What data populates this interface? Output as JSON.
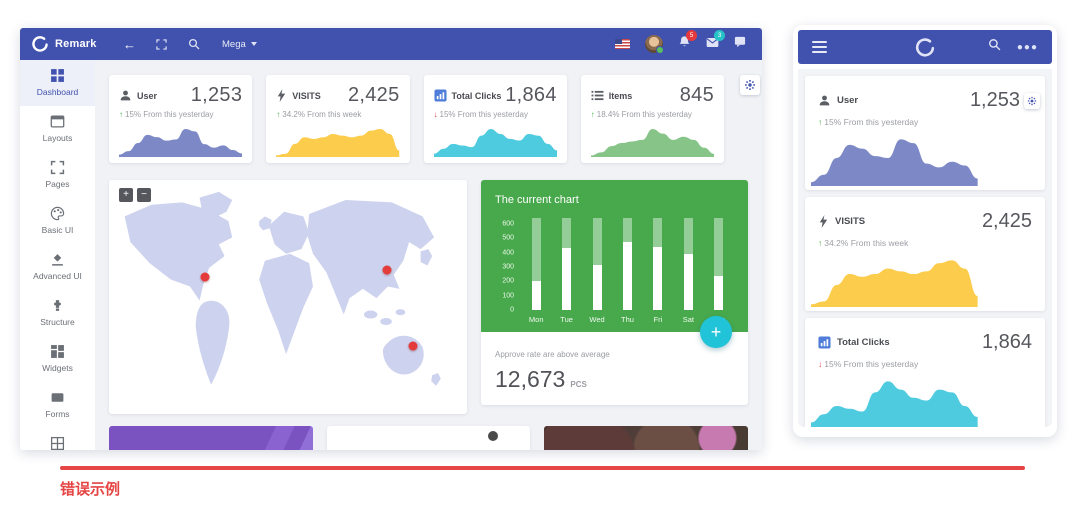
{
  "footer": {
    "caption": "错误示例"
  },
  "desktop": {
    "navbar": {
      "brand": "Remark",
      "back_glyph": "←",
      "mega_label": "Mega",
      "notif_badge": "5",
      "msg_badge": "3"
    },
    "sidebar": {
      "items": [
        {
          "label": "Dashboard"
        },
        {
          "label": "Layouts"
        },
        {
          "label": "Pages"
        },
        {
          "label": "Basic UI"
        },
        {
          "label": "Advanced UI"
        },
        {
          "label": "Structure"
        },
        {
          "label": "Widgets"
        },
        {
          "label": "Forms"
        },
        {
          "label": ""
        }
      ]
    },
    "stats": [
      {
        "label": "User",
        "value": "1,253",
        "trend": "up",
        "delta": "15% From this yesterday",
        "color": "#7d89c6",
        "spark": [
          2,
          5,
          12,
          19,
          17,
          14,
          15,
          24,
          22,
          11,
          8,
          10,
          6,
          3
        ]
      },
      {
        "label": "VISITS",
        "value": "2,425",
        "trend": "up",
        "delta": "34.2% From this week",
        "color": "#fccd4c",
        "spark": [
          1,
          2,
          8,
          12,
          11,
          12,
          14,
          13,
          12,
          13,
          16,
          17,
          14,
          4
        ]
      },
      {
        "label": "Total Clicks",
        "value": "1,864",
        "trend": "down",
        "delta": "15% From this yesterday",
        "color": "#4fcbdf",
        "spark": [
          2,
          5,
          8,
          7,
          6,
          13,
          17,
          14,
          11,
          10,
          14,
          13,
          8,
          4
        ]
      },
      {
        "label": "Items",
        "value": "845",
        "trend": "up",
        "delta": "18.4% From this yesterday",
        "color": "#86c487",
        "spark": [
          1,
          3,
          7,
          9,
          10,
          11,
          18,
          15,
          11,
          13,
          11,
          6,
          2
        ]
      }
    ],
    "map": {
      "zoom_in_label": "+",
      "zoom_out_label": "−",
      "markers": [
        {
          "x": 26,
          "y": 41
        },
        {
          "x": 78.5,
          "y": 38
        },
        {
          "x": 86,
          "y": 72
        }
      ]
    },
    "approve": {
      "text": "Approve rate are above average",
      "value": "12,673",
      "unit": "PCS"
    },
    "fab_label": "+"
  },
  "mobile": {
    "cards": [
      {
        "label": "User",
        "value": "1,253",
        "trend": "up",
        "delta": "15% From this yesterday",
        "color": "#7d89c6",
        "spark": [
          2,
          6,
          15,
          22,
          20,
          16,
          15,
          25,
          23,
          12,
          10,
          13,
          11,
          4
        ]
      },
      {
        "label": "VISITS",
        "value": "2,425",
        "trend": "up",
        "delta": "34.2% From this week",
        "color": "#fccd4c",
        "spark": [
          1,
          2,
          8,
          12,
          11,
          12,
          14,
          13,
          12,
          13,
          16,
          17,
          14,
          4
        ]
      },
      {
        "label": "Total Clicks",
        "value": "1,864",
        "trend": "down",
        "delta": "15% From this yesterday",
        "color": "#4fcbdf",
        "spark": [
          2,
          5,
          8,
          7,
          6,
          13,
          17,
          14,
          11,
          10,
          14,
          13,
          8,
          4
        ]
      }
    ]
  },
  "chart_data": {
    "type": "bar",
    "title": "The current chart",
    "categories": [
      "Mon",
      "Tue",
      "Wed",
      "Thu",
      "Fri",
      "Sat",
      "Sun"
    ],
    "values": [
      200,
      430,
      315,
      470,
      440,
      390,
      235
    ],
    "yticks": [
      600,
      500,
      400,
      300,
      200,
      100,
      0
    ],
    "ylim": [
      0,
      640
    ],
    "xlabel": "",
    "ylabel": "",
    "bar_color": "#ffffff",
    "track_color": "rgba(255,255,255,0.42)",
    "panel_color": "#48a94c",
    "legend": "none",
    "grid": false
  }
}
